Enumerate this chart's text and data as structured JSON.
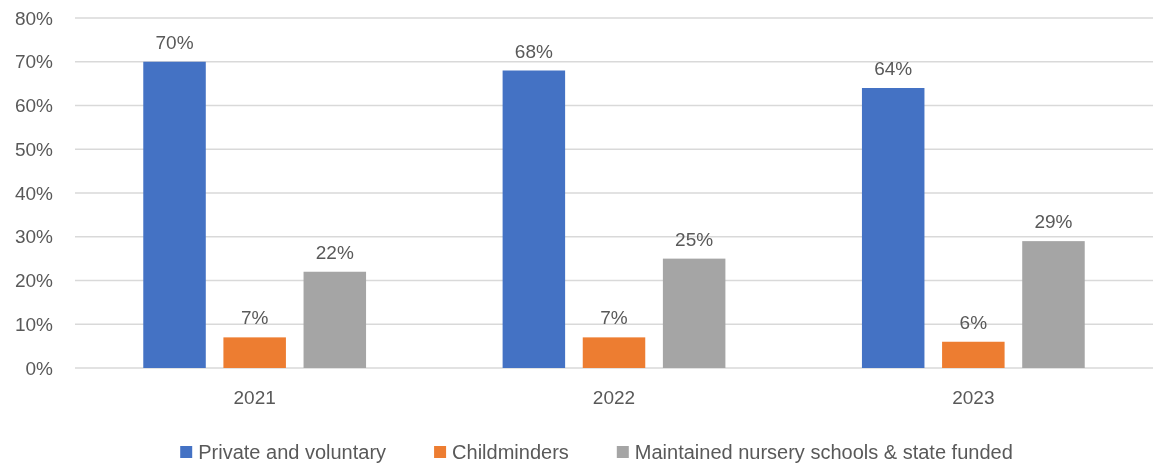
{
  "chart_data": {
    "type": "bar",
    "categories": [
      "2021",
      "2022",
      "2023"
    ],
    "series": [
      {
        "name": "Private and voluntary",
        "color": "#4472c4",
        "values": [
          70,
          68,
          64
        ],
        "value_labels": [
          "70%",
          "68%",
          "64%"
        ]
      },
      {
        "name": "Childminders",
        "color": "#ed7d31",
        "values": [
          7,
          7,
          6
        ],
        "value_labels": [
          "7%",
          "7%",
          "6%"
        ]
      },
      {
        "name": "Maintained nursery schools & state funded",
        "color": "#a5a5a5",
        "values": [
          22,
          25,
          29
        ],
        "value_labels": [
          "22%",
          "25%",
          "29%"
        ]
      }
    ],
    "ylim": [
      0,
      80
    ],
    "yticks": [
      {
        "value": 0,
        "label": "0%"
      },
      {
        "value": 10,
        "label": "10%"
      },
      {
        "value": 20,
        "label": "20%"
      },
      {
        "value": 30,
        "label": "30%"
      },
      {
        "value": 40,
        "label": "40%"
      },
      {
        "value": 50,
        "label": "50%"
      },
      {
        "value": 60,
        "label": "60%"
      },
      {
        "value": 70,
        "label": "70%"
      },
      {
        "value": 80,
        "label": "80%"
      }
    ],
    "grid": "y",
    "legend": "bottom"
  }
}
